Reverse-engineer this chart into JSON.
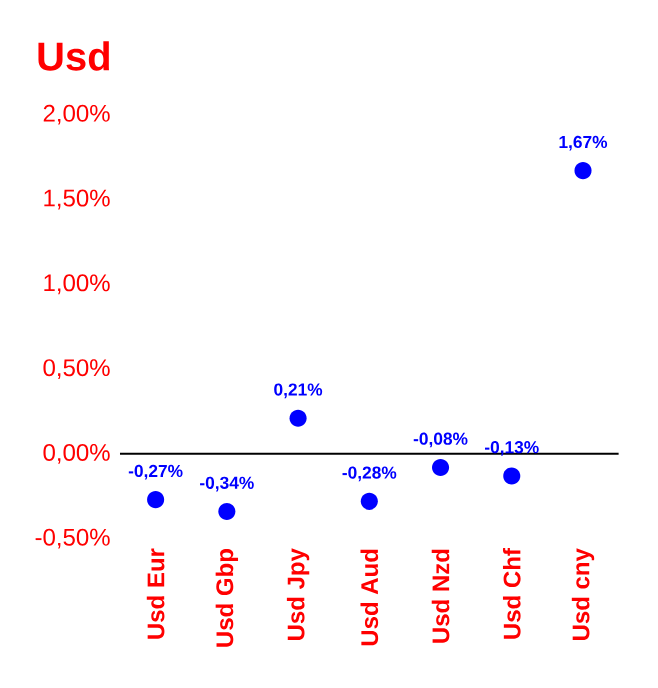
{
  "chart_data": {
    "type": "scatter",
    "title": "Usd",
    "categories": [
      "Usd Eur",
      "Usd Gbp",
      "Usd Jpy",
      "Usd Aud",
      "Usd Nzd",
      "Usd Chf",
      "Usd cny"
    ],
    "series": [
      {
        "color": "#0000ff",
        "values": [
          -0.27,
          -0.34,
          0.21,
          -0.28,
          -0.08,
          -0.13,
          1.67
        ],
        "value_labels": [
          "-0,27%",
          "-0,34%",
          "0,21%",
          "-0,28%",
          "-0,08%",
          "-0,13%",
          "1,67%"
        ]
      }
    ],
    "ylim": [
      -0.5,
      2.0
    ],
    "yticks": [
      {
        "value": -0.5,
        "label": "-0,50%"
      },
      {
        "value": 0,
        "label": "0,00%"
      },
      {
        "value": 0.5,
        "label": "0,50%"
      },
      {
        "value": 1.0,
        "label": "1,00%"
      },
      {
        "value": 1.5,
        "label": "1,50%"
      },
      {
        "value": 2.0,
        "label": "2,00%"
      }
    ],
    "ref_lines": [
      {
        "axis": "y",
        "value": 0,
        "color": "#000000"
      }
    ],
    "marker": "circle",
    "grid": false
  }
}
